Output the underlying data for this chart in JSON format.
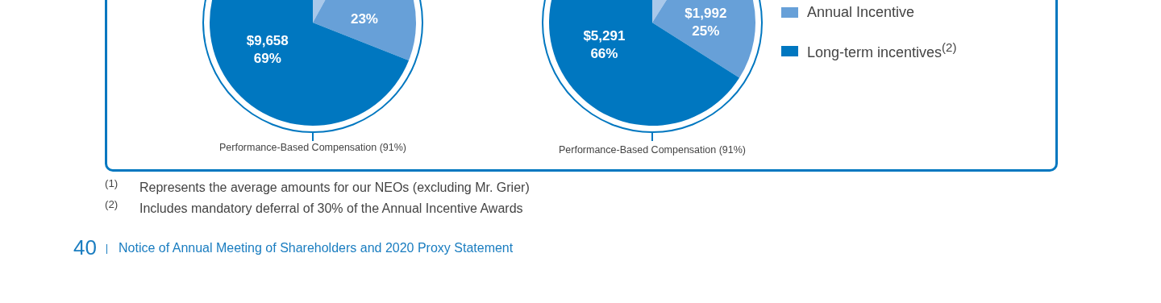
{
  "chart_data": [
    {
      "type": "pie",
      "categories": [
        null,
        null,
        null
      ],
      "values": [
        8,
        23,
        69
      ],
      "colors": [
        "#a9c8ea",
        "#67a0d8",
        "#0077c0"
      ],
      "value_labels": [
        null,
        "23%",
        "$9,658\n69%"
      ],
      "legend": false,
      "annotations": [
        "Performance-Based Compensation (91%)",
        "$^{(1)}$ Represents the average amounts for our NEOs (excluding Mr. Grier)",
        "$^{(2)}$ Includes mandatory deferral of 30% of the Annual Incentive Awards",
        "40",
        "Notice of Annual Meeting of Shareholders and 2020 Proxy Statement"
      ]
    },
    {
      "type": "pie",
      "categories": [
        null,
        "Annual Incentive",
        "Long-term incentives$^{(2)}$"
      ],
      "values": [
        9,
        25,
        66
      ],
      "colors": [
        "#a9c8ea",
        "#67a0d8",
        "#0077c0"
      ],
      "value_labels": [
        null,
        "$1,992\n25%",
        "$5,291\n66%"
      ],
      "legend": "right",
      "annotations": [
        "Performance-Based Compensation (91%)"
      ]
    }
  ]
}
